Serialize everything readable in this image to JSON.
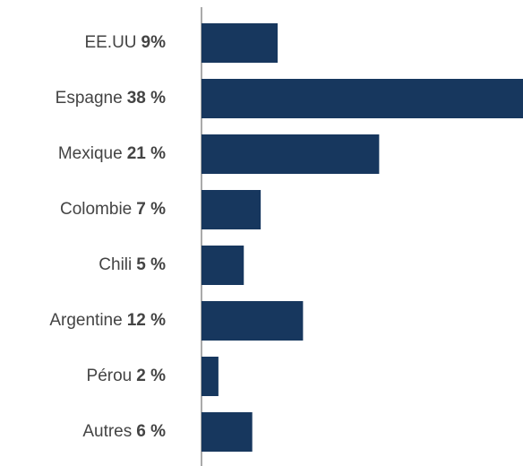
{
  "chart_data": {
    "type": "bar",
    "orientation": "horizontal",
    "categories": [
      "EE.UU",
      "Espagne",
      "Mexique",
      "Colombie",
      "Chili",
      "Argentine",
      "Pérou",
      "Autres"
    ],
    "values": [
      9,
      38,
      21,
      7,
      5,
      12,
      2,
      6
    ],
    "value_labels": [
      "9%",
      "38 %",
      "21 %",
      "7 %",
      "5 %",
      "12 %",
      "2 %",
      "6 %"
    ],
    "color": "#17375e",
    "xlim": [
      0,
      38
    ]
  }
}
